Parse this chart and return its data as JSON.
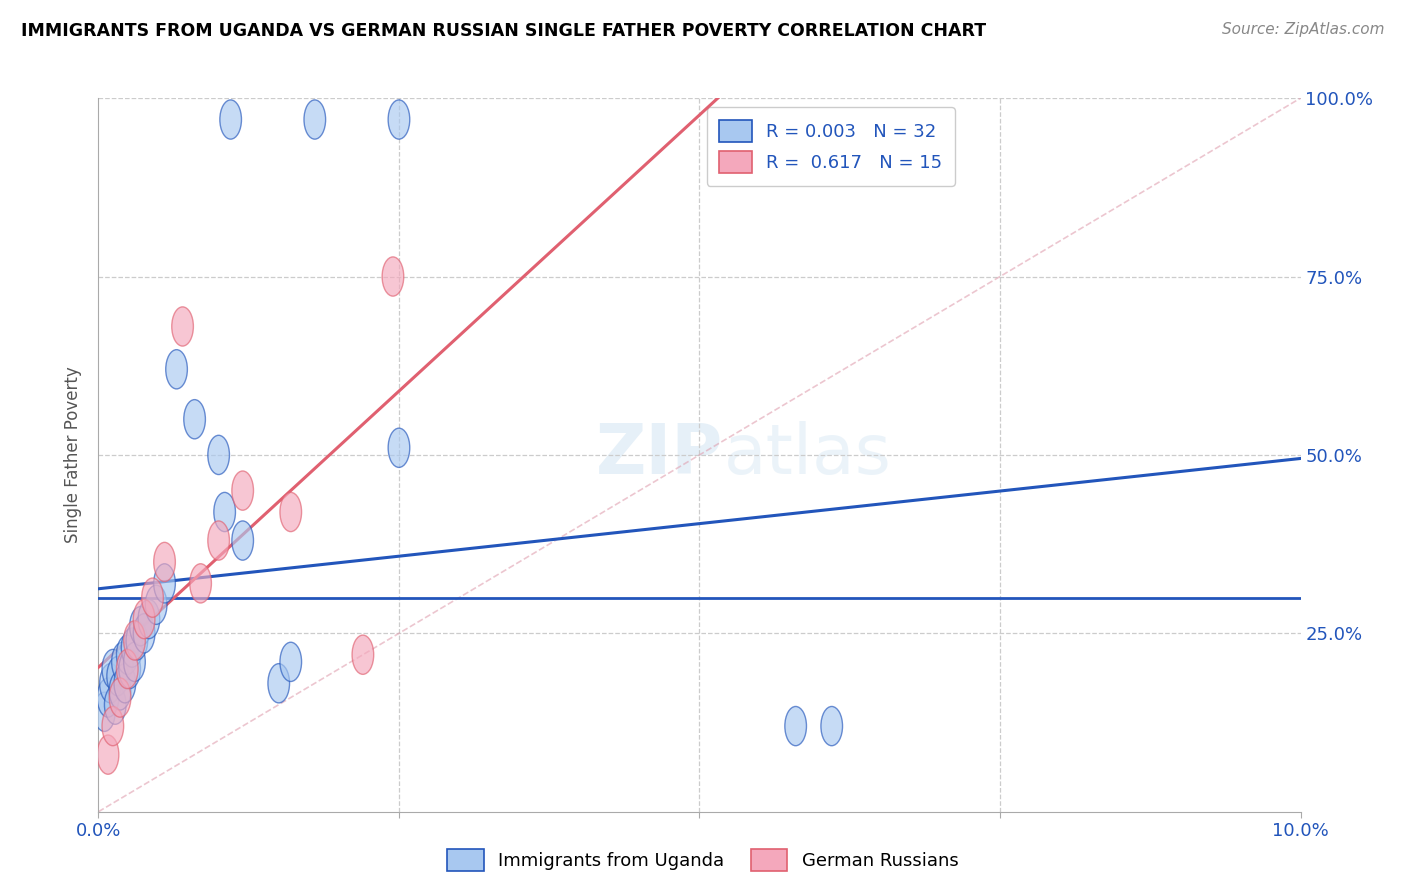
{
  "title": "IMMIGRANTS FROM UGANDA VS GERMAN RUSSIAN SINGLE FATHER POVERTY CORRELATION CHART",
  "source": "Source: ZipAtlas.com",
  "ylabel": "Single Father Poverty",
  "legend_label_1": "Immigrants from Uganda",
  "legend_label_2": "German Russians",
  "r1": "0.003",
  "n1": "32",
  "r2": "0.617",
  "n2": "15",
  "xlim": [
    0.0,
    10.0
  ],
  "ylim": [
    0.0,
    100.0
  ],
  "color_blue": "#A8C8F0",
  "color_pink": "#F4A8BC",
  "trendline_blue_color": "#2255BB",
  "trendline_pink_color": "#E06070",
  "watermark_zip": "ZIP",
  "watermark_atlas": "atlas",
  "hline_y": 30,
  "blue_x": [
    0.08,
    0.12,
    0.15,
    0.18,
    0.2,
    0.22,
    0.25,
    0.28,
    0.3,
    0.32,
    0.35,
    0.38,
    0.4,
    0.42,
    0.45,
    0.48,
    0.5,
    0.55,
    0.6,
    0.65,
    0.7,
    0.8,
    0.9,
    1.0,
    1.05,
    1.1,
    1.2,
    1.4,
    1.55,
    1.65,
    2.5,
    5.8
  ],
  "blue_y": [
    15,
    17,
    19,
    20,
    16,
    18,
    22,
    17,
    21,
    23,
    19,
    24,
    26,
    28,
    25,
    27,
    22,
    29,
    30,
    32,
    60,
    55,
    50,
    45,
    35,
    40,
    47,
    52,
    17,
    20,
    51,
    12
  ],
  "pink_x": [
    0.08,
    0.12,
    0.18,
    0.22,
    0.28,
    0.32,
    0.38,
    0.45,
    0.55,
    0.7,
    0.8,
    0.9,
    1.1,
    1.6,
    2.4
  ],
  "pink_y": [
    10,
    14,
    17,
    20,
    22,
    25,
    27,
    30,
    35,
    68,
    28,
    33,
    40,
    38,
    75
  ],
  "diag_color": "#E8B0C0",
  "grid_color": "#CCCCCC"
}
